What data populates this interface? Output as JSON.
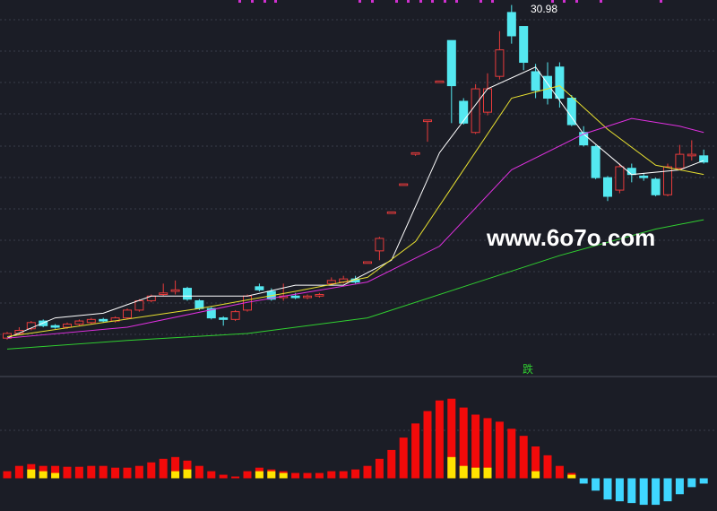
{
  "chart_data": [
    {
      "type": "candlestick",
      "ylim": [
        8,
        31.3
      ],
      "up_color": "#e83b3b",
      "down_color": "#54e8f0",
      "open": [
        9.6,
        9.9,
        10.2,
        10.7,
        10.4,
        10.3,
        10.5,
        10.6,
        10.8,
        10.7,
        10.9,
        11.4,
        12.0,
        12.4,
        12.6,
        12.8,
        12.0,
        11.5,
        10.9,
        10.8,
        11.4,
        12.9,
        12.6,
        12.2,
        12.3,
        12.2,
        12.3,
        13.1,
        13.2,
        13.4,
        14.4,
        15.2,
        17.6,
        19.4,
        21.4,
        23.5,
        26.0,
        28.7,
        24.8,
        22.8,
        24.1,
        26.4,
        30.5,
        29.6,
        26.7,
        26.4,
        27.0,
        25.0,
        22.8,
        21.9,
        19.9,
        19.1,
        20.5,
        20.0,
        19.8,
        18.8,
        20.5,
        21.3,
        21.3
      ],
      "close": [
        9.9,
        10.1,
        10.6,
        10.4,
        10.3,
        10.5,
        10.7,
        10.8,
        10.7,
        10.9,
        11.4,
        12.0,
        12.3,
        12.5,
        12.7,
        12.1,
        11.5,
        10.9,
        10.8,
        11.3,
        12.3,
        12.7,
        12.1,
        12.3,
        12.2,
        12.3,
        12.4,
        13.3,
        13.4,
        13.2,
        14.5,
        16.0,
        17.7,
        19.5,
        21.5,
        23.6,
        26.1,
        25.8,
        23.4,
        25.6,
        25.6,
        28.1,
        29.0,
        27.3,
        25.5,
        25.0,
        25.0,
        23.3,
        22.0,
        19.9,
        18.7,
        20.6,
        20.1,
        19.9,
        18.8,
        20.6,
        21.4,
        21.4,
        20.9
      ],
      "high": [
        10.0,
        10.3,
        10.7,
        10.8,
        10.5,
        10.6,
        10.8,
        10.9,
        10.9,
        11.0,
        11.5,
        12.1,
        12.4,
        13.1,
        13.3,
        12.9,
        12.1,
        11.6,
        11.0,
        11.4,
        12.4,
        13.1,
        12.8,
        13.1,
        12.5,
        12.4,
        12.5,
        13.5,
        13.6,
        13.6,
        14.5,
        16.1,
        17.7,
        19.5,
        21.5,
        23.6,
        26.1,
        28.7,
        25.0,
        25.9,
        26.6,
        29.3,
        30.98,
        29.6,
        27.2,
        27.3,
        27.3,
        25.2,
        23.2,
        22.0,
        20.0,
        20.8,
        20.8,
        20.2,
        19.9,
        20.8,
        22.0,
        22.3,
        21.7
      ],
      "low": [
        9.5,
        9.8,
        10.1,
        10.3,
        10.2,
        10.2,
        10.4,
        10.5,
        10.6,
        10.6,
        10.8,
        11.3,
        11.9,
        12.3,
        12.4,
        12.0,
        11.4,
        10.8,
        10.4,
        10.7,
        11.3,
        12.6,
        12.0,
        12.0,
        12.1,
        12.1,
        12.2,
        13.0,
        13.1,
        13.1,
        14.4,
        14.6,
        17.6,
        19.4,
        21.3,
        22.2,
        26.0,
        23.4,
        23.3,
        22.7,
        23.9,
        26.2,
        28.5,
        26.8,
        25.0,
        24.6,
        24.4,
        23.2,
        21.9,
        19.8,
        18.4,
        18.9,
        19.6,
        19.7,
        18.7,
        18.7,
        20.4,
        21.0,
        20.8
      ],
      "lines": [
        {
          "color": "#ffffff",
          "x": [
            0,
            4,
            8,
            12,
            16,
            20,
            24,
            28,
            32,
            36,
            40,
            44,
            48,
            52,
            56,
            58
          ],
          "values": [
            9.6,
            10.9,
            11.2,
            12.3,
            12.3,
            12.3,
            13.0,
            13.0,
            14.6,
            21.5,
            25.6,
            27.0,
            22.7,
            20.1,
            20.4,
            21.0
          ]
        },
        {
          "color": "#e8e030",
          "x": [
            0,
            8,
            16,
            24,
            30,
            34,
            38,
            42,
            46,
            50,
            54,
            58
          ],
          "values": [
            9.7,
            10.6,
            11.5,
            12.6,
            13.5,
            15.8,
            20.4,
            25.0,
            25.8,
            23.0,
            20.7,
            20.1
          ]
        },
        {
          "color": "#e030e0",
          "x": [
            0,
            10,
            20,
            30,
            36,
            42,
            48,
            52,
            56,
            58
          ],
          "values": [
            9.6,
            10.3,
            11.9,
            13.2,
            15.5,
            20.4,
            22.7,
            23.7,
            23.2,
            22.8
          ]
        },
        {
          "color": "#30d030",
          "x": [
            0,
            10,
            20,
            30,
            38,
            46,
            54,
            58
          ],
          "values": [
            8.9,
            9.45,
            9.9,
            10.9,
            12.9,
            14.9,
            16.6,
            17.2
          ]
        }
      ],
      "annotations": [
        "30.98",
        "www.6o7o.com"
      ]
    },
    {
      "type": "bar",
      "ylim": [
        -3.7,
        11
      ],
      "color": "#f20a0a",
      "negative_color": "#3fd6ff",
      "label": "跌",
      "values": [
        0.8,
        1.4,
        1.6,
        1.4,
        1.4,
        1.3,
        1.3,
        1.4,
        1.4,
        1.2,
        1.2,
        1.4,
        1.8,
        2.2,
        2.4,
        2.0,
        1.4,
        0.8,
        0.4,
        0.2,
        0.8,
        1.2,
        1.0,
        0.8,
        0.6,
        0.6,
        0.6,
        0.8,
        0.8,
        1.0,
        1.4,
        2.2,
        3.2,
        4.6,
        6.2,
        7.6,
        8.8,
        9.0,
        8.0,
        7.2,
        6.8,
        6.4,
        5.6,
        4.8,
        3.6,
        2.6,
        1.4,
        0.6,
        -0.6,
        -1.4,
        -2.4,
        -2.6,
        -2.8,
        -3.0,
        -3.0,
        -2.6,
        -1.8,
        -1.0,
        -0.6
      ],
      "series": [
        {
          "color": "#ffe400",
          "values": [
            null,
            null,
            1.0,
            0.8,
            0.6,
            null,
            null,
            null,
            null,
            null,
            null,
            null,
            null,
            null,
            0.8,
            1.0,
            null,
            null,
            null,
            null,
            null,
            0.8,
            0.8,
            0.6,
            null,
            null,
            null,
            null,
            null,
            null,
            null,
            null,
            null,
            null,
            null,
            null,
            null,
            2.4,
            1.4,
            1.2,
            1.2,
            null,
            null,
            null,
            0.8,
            null,
            null,
            0.4,
            null,
            null,
            null,
            null,
            null,
            null,
            null,
            null,
            null,
            null,
            null
          ]
        }
      ]
    }
  ]
}
